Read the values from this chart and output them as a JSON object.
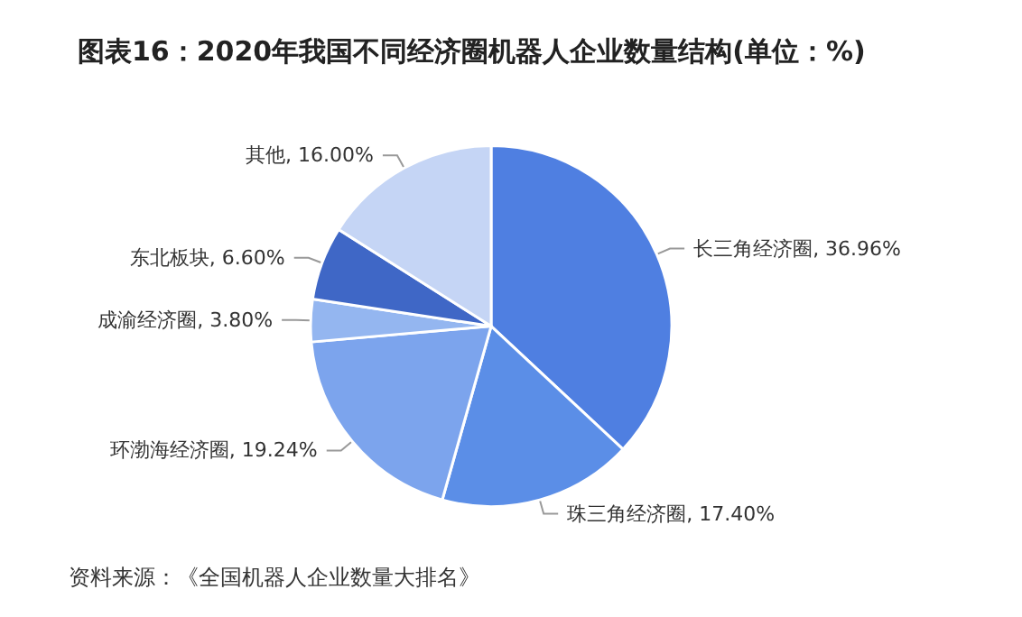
{
  "chart_data": {
    "type": "pie",
    "title": "图表16：2020年我国不同经济圈机器人企业数量结构(单位：%)",
    "categories": [
      "长三角经济圈",
      "珠三角经济圈",
      "环渤海经济圈",
      "成渝经济圈",
      "东北板块",
      "其他"
    ],
    "values": [
      36.96,
      17.4,
      19.24,
      3.8,
      6.6,
      16
    ],
    "value_labels": [
      "36.96%",
      "17.40%",
      "19.24%",
      "3.80%",
      "6.60%",
      "16.00%"
    ],
    "colors": [
      "#4f7fe1",
      "#5b8ee7",
      "#7ca4ed",
      "#94b6f0",
      "#3f67c6",
      "#c5d5f5"
    ],
    "legend": false,
    "annotations": [
      "资料来源：《全国机器人企业数量大排名》"
    ]
  }
}
